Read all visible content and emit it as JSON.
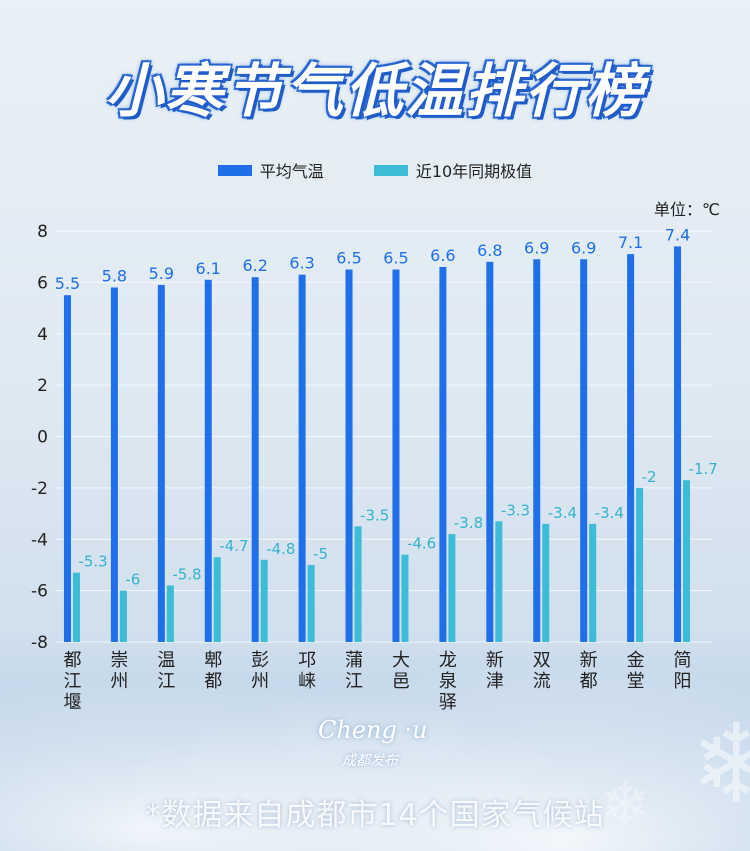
{
  "title": "小寒节气低温排行榜",
  "unit_label": "单位：℃",
  "logo": {
    "text": "Cheng ·u",
    "subtext": "成都发布"
  },
  "footer": "*数据来自成都市14个国家气候站",
  "colors": {
    "avg": "#1f6fe8",
    "extreme": "#3cbcd6",
    "avg_label": "#1f6fe8",
    "extreme_label": "#35b3cc"
  },
  "chart_data": {
    "type": "bar",
    "categories": [
      "都江堰",
      "崇州",
      "温江",
      "郫都",
      "彭州",
      "邛崃",
      "蒲江",
      "大邑",
      "龙泉驿",
      "新津",
      "双流",
      "新都",
      "金堂",
      "简阳"
    ],
    "series": [
      {
        "name": "平均气温",
        "values": [
          5.5,
          5.8,
          5.9,
          6.1,
          6.2,
          6.3,
          6.5,
          6.5,
          6.6,
          6.8,
          6.9,
          6.9,
          7.1,
          7.4
        ]
      },
      {
        "name": "近10年同期极值",
        "values": [
          -5.3,
          -6,
          -5.8,
          -4.7,
          -4.8,
          -5,
          -3.5,
          -4.6,
          -3.8,
          -3.3,
          -3.4,
          -3.4,
          -2,
          -1.7
        ]
      }
    ],
    "yticks": [
      8,
      6,
      4,
      2,
      0,
      -2,
      -4,
      -6,
      -8
    ],
    "ylim": [
      -8,
      8
    ],
    "grid": true,
    "legend_position": "top-center",
    "ylabel": "单位：℃"
  }
}
